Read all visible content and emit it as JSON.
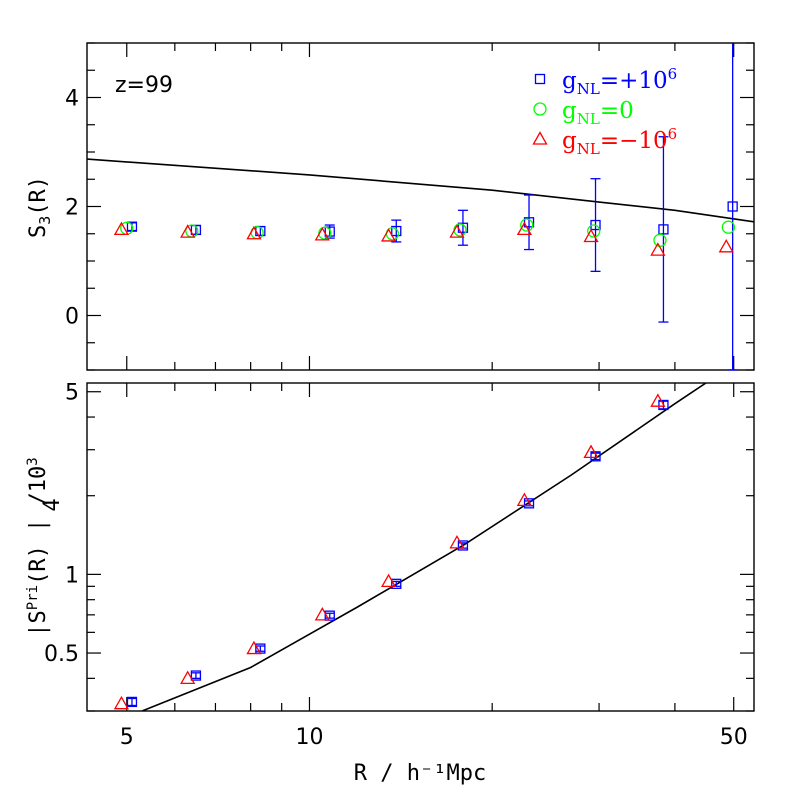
{
  "chart_data": [
    {
      "type": "scatter",
      "panel": "top",
      "annotation": "z=99",
      "ylabel_main": "S",
      "ylabel_sub": "3",
      "ylabel_rest": "(R)",
      "xlim": [
        4.3,
        54
      ],
      "x_scale": "log",
      "ylim": [
        -1,
        5
      ],
      "y_ticks": [
        0,
        2,
        4
      ],
      "y_tick_labels": [
        "0",
        "2",
        "4"
      ],
      "legend": [
        {
          "base": "g",
          "sub": "NL",
          "rest": "=+10",
          "sup": "6",
          "color": "#0000ff",
          "marker": "square"
        },
        {
          "base": "g",
          "sub": "NL",
          "rest": "=0",
          "sup": "",
          "color": "#00ff00",
          "marker": "circle"
        },
        {
          "base": "g",
          "sub": "NL",
          "rest": "=−10",
          "sup": "6",
          "color": "#ff0000",
          "marker": "triangle"
        }
      ],
      "legend_placement": "top-right",
      "series": [
        {
          "marker": "square",
          "color": "#0000ff",
          "x": [
            5.1,
            6.5,
            8.3,
            10.8,
            13.9,
            17.9,
            23.0,
            29.6,
            38.3,
            49.8
          ],
          "y": [
            1.63,
            1.57,
            1.55,
            1.54,
            1.55,
            1.61,
            1.71,
            1.66,
            1.58,
            2.0
          ],
          "err": [
            0.07,
            0.08,
            0.08,
            0.12,
            0.2,
            0.32,
            0.5,
            0.85,
            1.7,
            4.0
          ]
        },
        {
          "marker": "circle",
          "color": "#00ff00",
          "x": [
            5.0,
            6.4,
            8.2,
            10.6,
            13.7,
            17.7,
            22.8,
            29.4,
            37.8,
            49.0
          ],
          "y": [
            1.6,
            1.55,
            1.52,
            1.51,
            1.5,
            1.57,
            1.66,
            1.55,
            1.38,
            1.62
          ]
        },
        {
          "marker": "triangle",
          "color": "#ff0000",
          "x": [
            4.9,
            6.3,
            8.1,
            10.5,
            13.5,
            17.5,
            22.6,
            29.1,
            37.5,
            48.6
          ],
          "y": [
            1.58,
            1.53,
            1.5,
            1.48,
            1.46,
            1.53,
            1.58,
            1.45,
            1.2,
            1.26
          ]
        }
      ],
      "theory_line": {
        "x": [
          4.3,
          10,
          20,
          30,
          40,
          54
        ],
        "y": [
          2.87,
          2.58,
          2.3,
          2.08,
          1.93,
          1.72
        ]
      }
    },
    {
      "type": "scatter",
      "panel": "bottom",
      "ylabel_main": "|S",
      "ylabel_sub": "4",
      "ylabel_sup": "Pri",
      "ylabel_rest": "(R) | /10",
      "ylabel_exp": "3",
      "xlabel": "R / h⁻¹Mpc",
      "xlim": [
        4.3,
        54
      ],
      "x_scale": "log",
      "x_ticks": [
        5,
        10,
        50
      ],
      "x_tick_labels": [
        "5",
        "10",
        "50"
      ],
      "ylim": [
        0.3,
        5.4
      ],
      "y_scale": "log",
      "y_ticks": [
        0.5,
        1,
        5
      ],
      "y_tick_labels": [
        "0.5",
        "1",
        "5"
      ],
      "series": [
        {
          "marker": "square",
          "color": "#0000ff",
          "x": [
            5.1,
            6.5,
            8.3,
            10.8,
            13.9,
            17.9,
            23.0,
            29.6,
            38.3
          ],
          "y": [
            0.325,
            0.41,
            0.52,
            0.695,
            0.92,
            1.29,
            1.87,
            2.83,
            4.45
          ],
          "err": [
            0.01,
            0.01,
            0.012,
            0.015,
            0.02,
            0.03,
            0.04,
            0.08,
            0.15
          ]
        },
        {
          "marker": "triangle",
          "color": "#ff0000",
          "x": [
            4.9,
            6.3,
            8.1,
            10.5,
            13.5,
            17.5,
            22.6,
            29.1,
            37.5
          ],
          "y": [
            0.32,
            0.4,
            0.52,
            0.7,
            0.94,
            1.32,
            1.92,
            2.93,
            4.6
          ]
        }
      ],
      "theory_line": {
        "x": [
          5.3,
          8,
          12,
          18,
          27,
          40,
          45
        ],
        "y": [
          0.3,
          0.44,
          0.75,
          1.3,
          2.4,
          4.5,
          5.4
        ]
      }
    }
  ]
}
